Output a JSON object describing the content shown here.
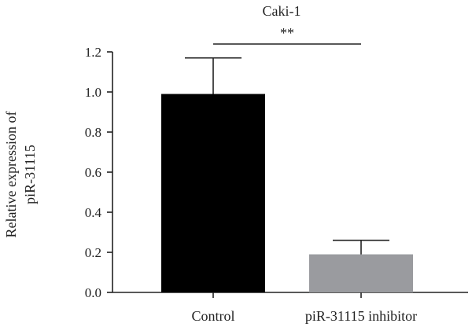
{
  "chart_data": {
    "type": "bar",
    "title": "Caki-1",
    "ylabel_lines": [
      "Relative expression of",
      "piR-31115"
    ],
    "xlabel": "",
    "categories": [
      "Control",
      "piR-31115 inhibitor"
    ],
    "values": [
      0.99,
      0.19
    ],
    "error": [
      0.18,
      0.07
    ],
    "ylim": [
      0,
      1.2
    ],
    "yticks": [
      0.0,
      0.2,
      0.4,
      0.6,
      0.8,
      1.0,
      1.2
    ],
    "ytick_labels": [
      "0.0",
      "0.2",
      "0.4",
      "0.6",
      "0.8",
      "1.0",
      "1.2"
    ],
    "bar_colors": [
      "#000000",
      "#9a9b9f"
    ],
    "significance": {
      "label": "**",
      "between": [
        0,
        1
      ]
    },
    "grid": false,
    "legend": "none"
  }
}
